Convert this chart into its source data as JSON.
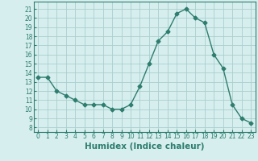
{
  "x": [
    0,
    1,
    2,
    3,
    4,
    5,
    6,
    7,
    8,
    9,
    10,
    11,
    12,
    13,
    14,
    15,
    16,
    17,
    18,
    19,
    20,
    21,
    22,
    23
  ],
  "y": [
    13.5,
    13.5,
    12.0,
    11.5,
    11.0,
    10.5,
    10.5,
    10.5,
    10.0,
    10.0,
    10.5,
    12.5,
    15.0,
    17.5,
    18.5,
    20.5,
    21.0,
    20.0,
    19.5,
    16.0,
    14.5,
    10.5,
    9.0,
    8.5
  ],
  "line_color": "#2e7d6e",
  "marker": "D",
  "markersize": 2.5,
  "linewidth": 1.0,
  "bg_color": "#d6eeee",
  "grid_color": "#aacece",
  "xlabel": "Humidex (Indice chaleur)",
  "xlabel_fontsize": 7.5,
  "xlabel_fontweight": "bold",
  "yticks": [
    8,
    9,
    10,
    11,
    12,
    13,
    14,
    15,
    16,
    17,
    18,
    19,
    20,
    21
  ],
  "xticks": [
    0,
    1,
    2,
    3,
    4,
    5,
    6,
    7,
    8,
    9,
    10,
    11,
    12,
    13,
    14,
    15,
    16,
    17,
    18,
    19,
    20,
    21,
    22,
    23
  ],
  "ylim": [
    7.5,
    21.8
  ],
  "xlim": [
    -0.5,
    23.5
  ],
  "tick_fontsize": 5.5
}
